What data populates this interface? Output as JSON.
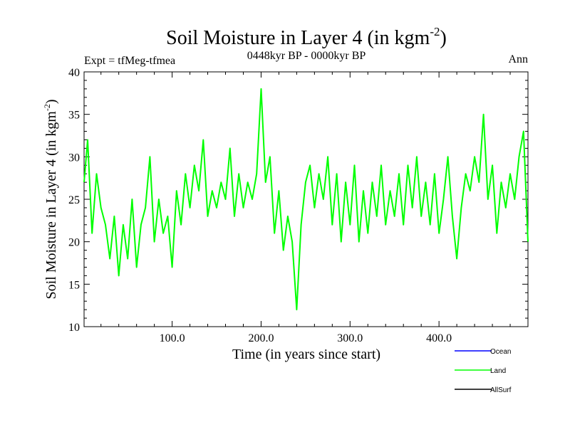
{
  "chart_data": {
    "type": "line",
    "title": "Soil Moisture in Layer 4 (in kgm",
    "title_sup": "-2",
    "title_close": ")",
    "subtitle_left": "Expt = tfMeg-tfmea",
    "subtitle_center": "0448kyr BP - 0000kyr BP",
    "subtitle_right": "Ann",
    "xlabel": "Time (in years since start)",
    "ylabel": "Soil Moisture in Layer 4 (in kgm",
    "ylabel_sup": "-2",
    "ylabel_close": ")",
    "xlim": [
      1,
      500
    ],
    "ylim": [
      10,
      40
    ],
    "xticks": [
      100,
      200,
      300,
      400
    ],
    "xtick_labels": [
      "100.0",
      "200.0",
      "300.0",
      "400.0"
    ],
    "yticks": [
      10,
      15,
      20,
      25,
      30,
      35,
      40
    ],
    "ytick_labels": [
      "10",
      "15",
      "20",
      "25",
      "30",
      "35",
      "40"
    ],
    "legend_position": "bottom-right",
    "series": [
      {
        "name": "Ocean",
        "color": "#0000ff",
        "values": []
      },
      {
        "name": "AllSurf",
        "color": "#000000",
        "values": []
      },
      {
        "name": "Land",
        "color": "#00ff00",
        "x": [
          1,
          5,
          10,
          15,
          20,
          25,
          30,
          35,
          40,
          45,
          50,
          55,
          60,
          65,
          70,
          75,
          80,
          85,
          90,
          95,
          100,
          105,
          110,
          115,
          120,
          125,
          130,
          135,
          140,
          145,
          150,
          155,
          160,
          165,
          170,
          175,
          180,
          185,
          190,
          195,
          200,
          205,
          210,
          215,
          220,
          225,
          230,
          235,
          240,
          245,
          250,
          255,
          260,
          265,
          270,
          275,
          280,
          285,
          290,
          295,
          300,
          305,
          310,
          315,
          320,
          325,
          330,
          335,
          340,
          345,
          350,
          355,
          360,
          365,
          370,
          375,
          380,
          385,
          390,
          395,
          400,
          405,
          410,
          415,
          420,
          425,
          430,
          435,
          440,
          445,
          450,
          455,
          460,
          465,
          470,
          475,
          480,
          485,
          490,
          495,
          500
        ],
        "values": [
          27,
          32,
          21,
          28,
          24,
          22,
          18,
          23,
          16,
          22,
          18,
          25,
          17,
          22,
          24,
          30,
          20,
          25,
          21,
          23,
          17,
          26,
          22,
          28,
          24,
          29,
          26,
          32,
          23,
          26,
          24,
          27,
          25,
          31,
          23,
          28,
          24,
          27,
          25,
          28,
          38,
          27,
          30,
          21,
          26,
          19,
          23,
          20,
          12,
          22,
          27,
          29,
          24,
          28,
          25,
          30,
          22,
          28,
          20,
          27,
          22,
          29,
          20,
          26,
          21,
          27,
          23,
          29,
          22,
          26,
          23,
          28,
          22,
          29,
          24,
          30,
          23,
          27,
          22,
          28,
          21,
          25,
          30,
          23,
          18,
          24,
          28,
          26,
          30,
          27,
          35,
          25,
          29,
          21,
          27,
          24,
          28,
          25,
          30,
          33,
          20
        ]
      }
    ]
  }
}
